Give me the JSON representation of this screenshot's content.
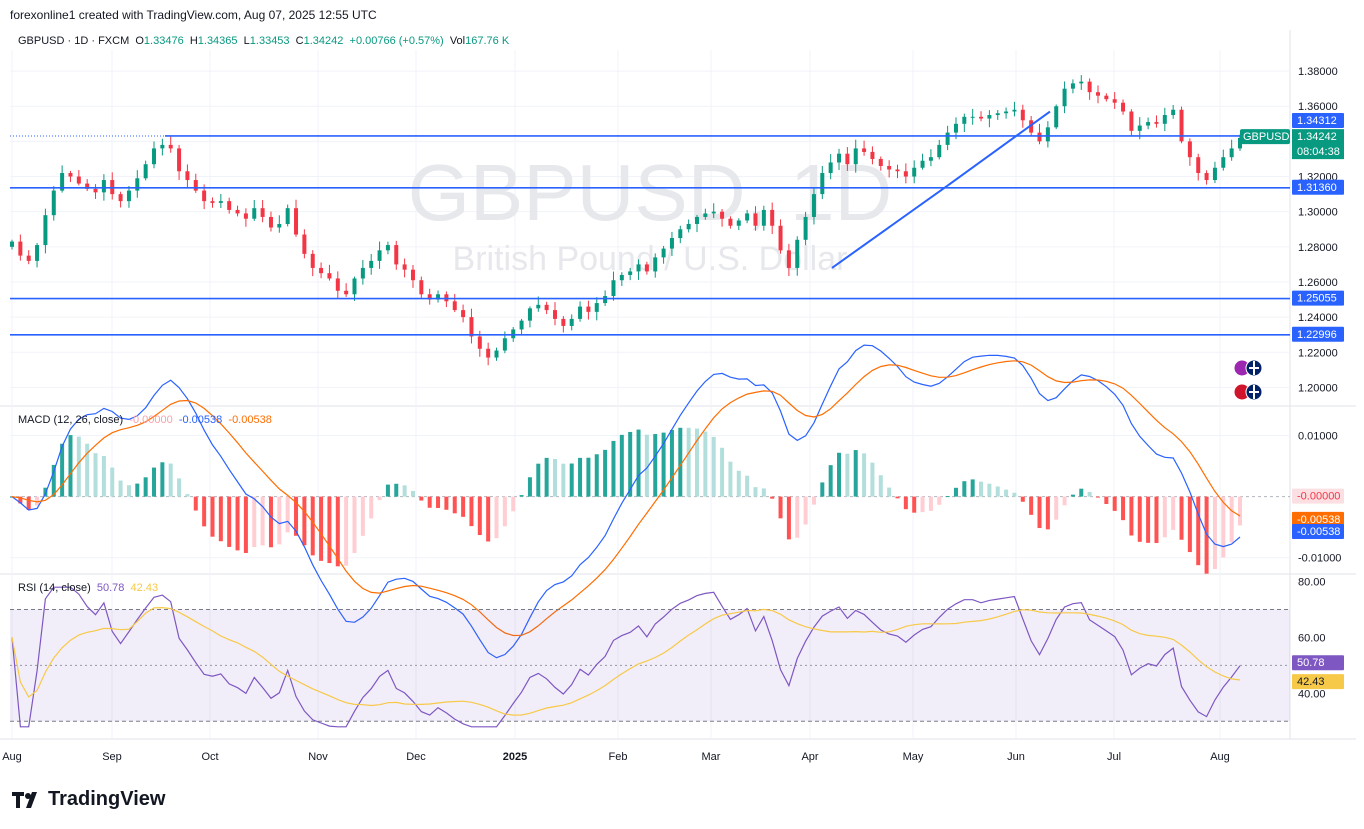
{
  "header": {
    "created": "forexonline1 created with TradingView.com, Aug 07, 2025 12:55 UTC",
    "symbol": "GBPUSD · 1D · FXCM",
    "o_label": "O",
    "o": "1.33476",
    "h_label": "H",
    "h": "1.34365",
    "l_label": "L",
    "l": "1.33453",
    "c_label": "C",
    "c": "1.34242",
    "change": "+0.00766 (+0.57%)",
    "vol_label": "Vol",
    "vol": "167.76 K"
  },
  "watermark": {
    "line1": "GBPUSD, 1D",
    "line2": "British Pound / U.S. Dollar"
  },
  "logo": {
    "text": "TradingView"
  },
  "colors": {
    "up": "#089981",
    "down": "#f23645",
    "line": "#2962ff",
    "rsi": "#7e57c2",
    "rsi_ma": "#f7c948",
    "macd_signal": "#ff6d00"
  },
  "chart_data": [
    {
      "type": "candlestick",
      "title": "GBPUSD · 1D · FXCM",
      "ylim": [
        1.19,
        1.392
      ],
      "y_ticks": [
        "1.38000",
        "1.36000",
        "1.34000",
        "1.32000",
        "1.30000",
        "1.28000",
        "1.26000",
        "1.24000",
        "1.22000",
        "1.20000"
      ],
      "y_tick_values": [
        1.38,
        1.36,
        1.34,
        1.32,
        1.3,
        1.28,
        1.26,
        1.24,
        1.22,
        1.2
      ],
      "x_labels": [
        "Aug",
        "Sep",
        "Oct",
        "Nov",
        "Dec",
        "2025",
        "Feb",
        "Mar",
        "Apr",
        "May",
        "Jun",
        "Jul",
        "Aug"
      ],
      "horizontal_lines": [
        1.3431,
        1.3136,
        1.25055,
        1.22996
      ],
      "trendlines": [
        {
          "from": [
            "Apr",
            1.268
          ],
          "to": [
            "May",
            1.315
          ]
        },
        {
          "from": [
            "May",
            1.315
          ],
          "to": [
            "Jun",
            1.357
          ]
        }
      ],
      "close_path": [
        1.283,
        1.275,
        1.272,
        1.281,
        1.298,
        1.312,
        1.322,
        1.32,
        1.316,
        1.313,
        1.311,
        1.318,
        1.31,
        1.306,
        1.312,
        1.319,
        1.327,
        1.336,
        1.338,
        1.336,
        1.323,
        1.318,
        1.312,
        1.306,
        1.305,
        1.306,
        1.301,
        1.299,
        1.296,
        1.302,
        1.297,
        1.291,
        1.293,
        1.302,
        1.287,
        1.276,
        1.268,
        1.265,
        1.262,
        1.255,
        1.253,
        1.262,
        1.268,
        1.272,
        1.278,
        1.281,
        1.27,
        1.267,
        1.261,
        1.253,
        1.25,
        1.253,
        1.249,
        1.244,
        1.24,
        1.229,
        1.222,
        1.217,
        1.221,
        1.228,
        1.233,
        1.238,
        1.245,
        1.247,
        1.244,
        1.239,
        1.235,
        1.239,
        1.246,
        1.243,
        1.248,
        1.252,
        1.261,
        1.264,
        1.266,
        1.27,
        1.266,
        1.274,
        1.279,
        1.285,
        1.29,
        1.293,
        1.297,
        1.299,
        1.3,
        1.296,
        1.292,
        1.295,
        1.299,
        1.292,
        1.301,
        1.292,
        1.278,
        1.268,
        1.284,
        1.297,
        1.31,
        1.322,
        1.328,
        1.333,
        1.327,
        1.336,
        1.334,
        1.33,
        1.326,
        1.324,
        1.323,
        1.32,
        1.325,
        1.329,
        1.331,
        1.338,
        1.345,
        1.35,
        1.354,
        1.354,
        1.353,
        1.355,
        1.356,
        1.357,
        1.358,
        1.352,
        1.345,
        1.34,
        1.348,
        1.36,
        1.37,
        1.373,
        1.374,
        1.368,
        1.366,
        1.364,
        1.362,
        1.357,
        1.346,
        1.349,
        1.351,
        1.35,
        1.355,
        1.358,
        1.34,
        1.331,
        1.322,
        1.318,
        1.325,
        1.331,
        1.336,
        1.342
      ],
      "current_price": "1.34242",
      "countdown": "08:04:38",
      "price_tags": [
        "1.34312",
        "1.31360",
        "1.25055",
        "1.22996"
      ],
      "symbol_tag": "GBPUSD"
    },
    {
      "type": "macd",
      "title": "MACD (12, 26, close)",
      "values_text": [
        "-0.00000",
        "-0.00538",
        "-0.00538"
      ],
      "ylim": [
        -0.0125,
        0.0145
      ],
      "y_ticks": [
        "0.01000",
        "-0.00000",
        "-0.01000"
      ],
      "y_tick_values": [
        0.01,
        0.0,
        -0.01
      ],
      "tags": [
        "-0.00000",
        "-0.00538",
        "-0.00538"
      ]
    },
    {
      "type": "rsi",
      "title": "RSI (14, close)",
      "values_text": [
        "50.78",
        "42.43"
      ],
      "ylim": [
        24,
        82
      ],
      "bands": [
        70,
        30
      ],
      "y_ticks": [
        "80.00",
        "60.00",
        "40.00"
      ],
      "y_tick_values": [
        80,
        60,
        40
      ],
      "tags": [
        "50.78",
        "42.43"
      ]
    }
  ]
}
